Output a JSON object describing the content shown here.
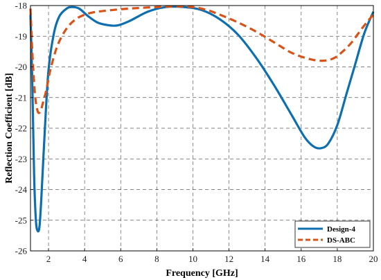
{
  "chart_data": {
    "type": "line",
    "xlabel": "Frequency [GHz]",
    "ylabel": "Reflection Coefficient [dB]",
    "xlim": [
      1,
      20
    ],
    "ylim": [
      -26,
      -18
    ],
    "x_ticks": [
      2,
      4,
      6,
      8,
      10,
      12,
      14,
      16,
      18,
      20
    ],
    "x_tick_labels": [
      "2",
      "4",
      "6",
      "8",
      "10",
      "12",
      "14",
      "16",
      "18",
      "20"
    ],
    "y_ticks": [
      -18,
      -19,
      -20,
      -21,
      -22,
      -23,
      -24,
      -25,
      -26
    ],
    "y_tick_labels": [
      "-18",
      "-19",
      "-20",
      "-21",
      "-22",
      "-23",
      "-24",
      "-25",
      "-26"
    ],
    "grid": true,
    "legend_position": "bottom-right",
    "series": [
      {
        "name": "Design-4",
        "color": "#0d6eb0",
        "line_style": "solid",
        "x": [
          1.0,
          1.1,
          1.2,
          1.3,
          1.4,
          1.5,
          1.6,
          1.8,
          2.0,
          2.3,
          2.6,
          3.0,
          3.3,
          3.7,
          4.2,
          4.7,
          5.2,
          5.8,
          6.5,
          7.5,
          8.5,
          9.5,
          10.5,
          11.5,
          12.5,
          13.5,
          14.5,
          15.5,
          16.2,
          16.7,
          17.1,
          17.5,
          18.0,
          18.5,
          19.0,
          19.5,
          20.0
        ],
        "y": [
          -18.3,
          -20.5,
          -23.5,
          -25.0,
          -25.35,
          -25.2,
          -24.3,
          -22.0,
          -20.1,
          -18.9,
          -18.35,
          -18.1,
          -18.05,
          -18.1,
          -18.35,
          -18.55,
          -18.63,
          -18.65,
          -18.5,
          -18.2,
          -18.05,
          -18.05,
          -18.15,
          -18.45,
          -18.95,
          -19.7,
          -20.6,
          -21.6,
          -22.3,
          -22.6,
          -22.65,
          -22.5,
          -21.9,
          -20.9,
          -19.9,
          -18.9,
          -18.2
        ]
      },
      {
        "name": "DS-ABC",
        "color": "#d95319",
        "line_style": "dashed",
        "x": [
          1.0,
          1.1,
          1.25,
          1.4,
          1.55,
          1.7,
          1.9,
          2.1,
          2.5,
          3.0,
          3.5,
          4.0,
          4.5,
          5.0,
          6.0,
          7.0,
          8.0,
          9.0,
          10.0,
          10.8,
          11.5,
          12.5,
          13.5,
          14.5,
          15.5,
          16.5,
          17.2,
          17.8,
          18.3,
          18.8,
          19.3,
          19.7,
          20.0
        ],
        "y": [
          -18.1,
          -19.5,
          -20.9,
          -21.45,
          -21.45,
          -21.15,
          -20.7,
          -20.1,
          -19.3,
          -18.75,
          -18.45,
          -18.3,
          -18.22,
          -18.18,
          -18.12,
          -18.08,
          -18.05,
          -18.03,
          -18.05,
          -18.15,
          -18.3,
          -18.55,
          -18.85,
          -19.2,
          -19.55,
          -19.75,
          -19.8,
          -19.72,
          -19.5,
          -19.2,
          -18.8,
          -18.5,
          -18.3
        ]
      }
    ]
  }
}
